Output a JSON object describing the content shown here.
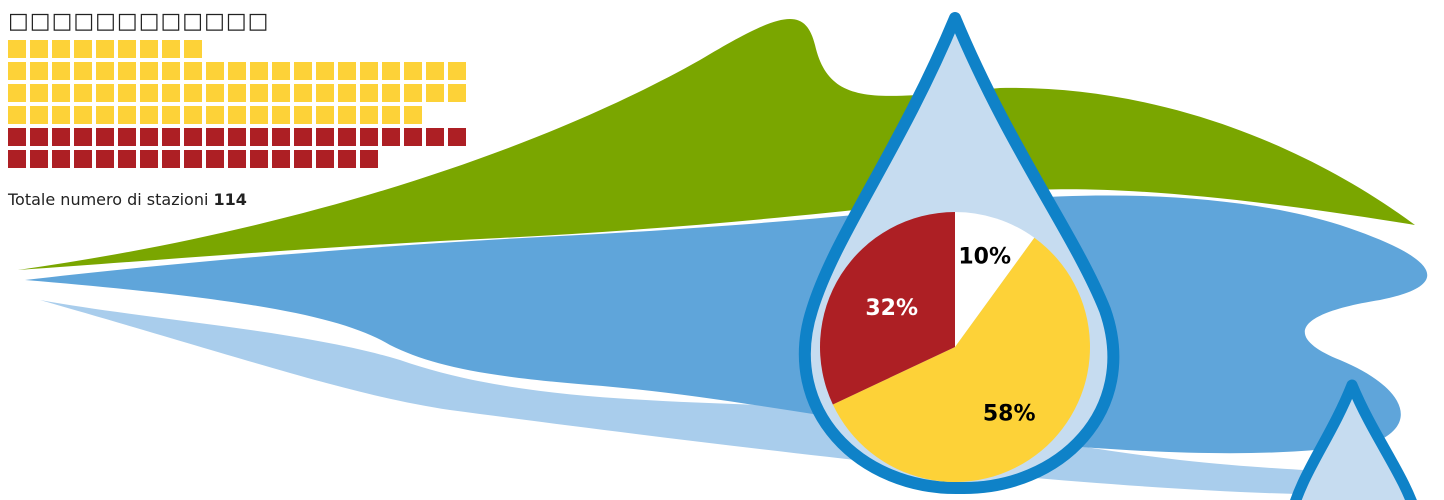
{
  "waffle": {
    "title": "□□□□□□□□□□□□",
    "colors": {
      "yellow": "#fdd238",
      "red": "#ad1f24"
    },
    "rows": [
      {
        "color": "yellow",
        "count": 9
      },
      {
        "color": "yellow",
        "count": 21
      },
      {
        "color": "yellow",
        "count": 21
      },
      {
        "color": "yellow",
        "count": 19
      },
      {
        "color": "red",
        "count": 21
      },
      {
        "color": "red",
        "count": 17
      }
    ]
  },
  "total": {
    "label": "Totale numero di stazioni",
    "value": "114"
  },
  "chart_data": {
    "type": "pie",
    "title": "",
    "slices": [
      {
        "label": "10%",
        "value": 10,
        "color": "#ffffff",
        "text_color": "#000000"
      },
      {
        "label": "58%",
        "value": 58,
        "color": "#fdd238",
        "text_color": "#000000"
      },
      {
        "label": "32%",
        "value": 32,
        "color": "#ad1f24",
        "text_color": "#ffffff"
      }
    ]
  },
  "colors": {
    "green": "#7aa600",
    "lake": "#5fa5da",
    "lake_light": "#a9cdec",
    "drop_fill": "#c6dcf0",
    "drop_stroke": "#0f82c8"
  }
}
